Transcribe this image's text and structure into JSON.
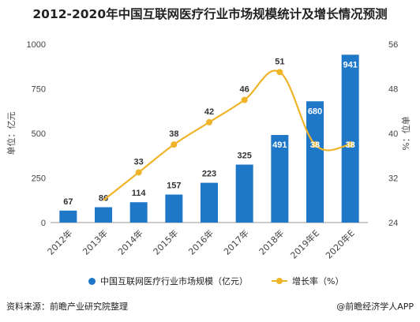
{
  "title": "2012-2020年中国互联网医疗行业市场规模统计及增长情况预测",
  "source": "资料来源：前瞻产业研究院整理",
  "brand": "@前瞻经济学人APP",
  "colors": {
    "bar": "#1f77c8",
    "line": "#f0b429",
    "axis": "#888888",
    "label_on_bar": "#ffffff"
  },
  "chart_data": {
    "type": "bar",
    "categories": [
      "2012年",
      "2013年",
      "2014年",
      "2015年",
      "2016年",
      "2017年",
      "2018年",
      "2019年E",
      "2020年E"
    ],
    "series": [
      {
        "name": "中国互联网医疗行业市场规模（亿元）",
        "type": "bar",
        "axis": "left",
        "values": [
          67,
          86,
          114,
          157,
          223,
          325,
          491,
          680,
          941
        ]
      },
      {
        "name": "增长率（%）",
        "type": "line",
        "axis": "right",
        "values": [
          null,
          28,
          33,
          38,
          42,
          46,
          51,
          38,
          38
        ],
        "labels": [
          "",
          "",
          "33",
          "38",
          "42",
          "46",
          "51",
          "38",
          "38"
        ]
      }
    ],
    "ylabel": "单位：亿元",
    "y2label": "%：位单",
    "ylim": [
      0,
      1000
    ],
    "yticks": [
      0,
      250,
      500,
      750,
      1000
    ],
    "y2lim": [
      24,
      56
    ],
    "y2ticks": [
      24,
      32,
      40,
      48,
      56
    ],
    "legend": "bottom"
  }
}
